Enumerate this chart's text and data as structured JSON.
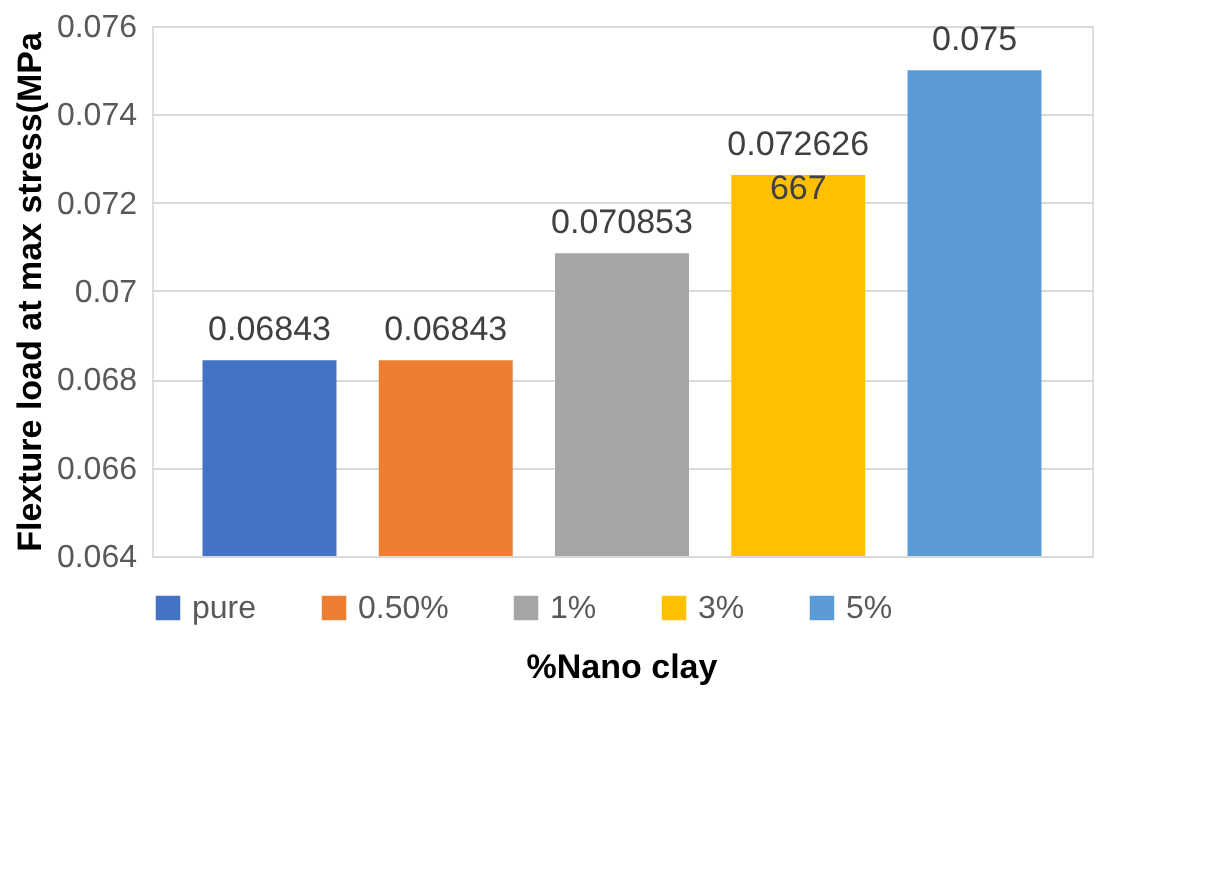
{
  "chart_data": {
    "type": "bar",
    "xlabel": "%Nano clay",
    "ylabel": "Flexture load at max stress(MPa",
    "categories": [
      null
    ],
    "series": [
      {
        "name": "pure",
        "color": "#4472c4",
        "values": [
          0.06843
        ]
      },
      {
        "name": "0.50%",
        "color": "#ed7d31",
        "values": [
          0.06843
        ]
      },
      {
        "name": "1%",
        "color": "#a5a5a5",
        "values": [
          0.070853
        ]
      },
      {
        "name": "3%",
        "color": "#ffc000",
        "values": [
          0.072626667
        ]
      },
      {
        "name": "5%",
        "color": "#5b9bd5",
        "values": [
          0.075
        ]
      }
    ],
    "ylim": [
      0.064,
      0.076
    ],
    "yticks": [
      0.064,
      0.066,
      0.068,
      0.07,
      0.072,
      0.074,
      0.076
    ],
    "grid": "y",
    "legend": "bottom",
    "tick_labels": "y",
    "data_labels": true
  }
}
